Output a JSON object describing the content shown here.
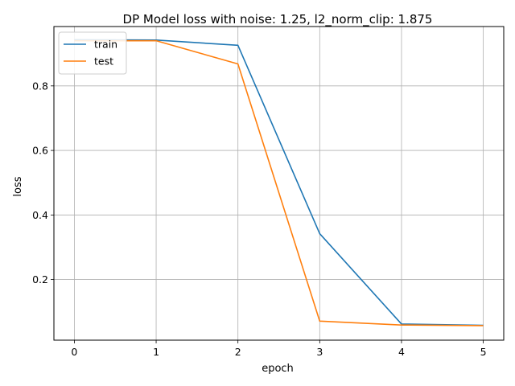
{
  "chart_data": {
    "type": "line",
    "title": "DP Model loss with noise: 1.25, l2_norm_clip: 1.875",
    "xlabel": "epoch",
    "ylabel": "loss",
    "x": [
      0,
      1,
      2,
      3,
      4,
      5
    ],
    "xticks": [
      "0",
      "1",
      "2",
      "3",
      "4",
      "5"
    ],
    "yticks": [
      "0.2",
      "0.4",
      "0.6",
      "0.8"
    ],
    "xlim": [
      -0.25,
      5.25
    ],
    "ylim": [
      0.012,
      0.984
    ],
    "grid": true,
    "legend_position": "top-left",
    "series": [
      {
        "name": "train",
        "color": "#1f77b4",
        "values": [
          0.943,
          0.942,
          0.926,
          0.342,
          0.062,
          0.058
        ]
      },
      {
        "name": "test",
        "color": "#ff7f0e",
        "values": [
          0.94,
          0.94,
          0.868,
          0.071,
          0.059,
          0.057
        ]
      }
    ]
  }
}
